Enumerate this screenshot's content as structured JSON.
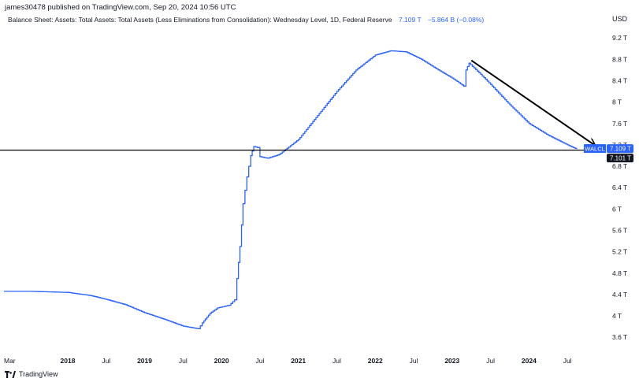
{
  "header": {
    "published_line": "james30478 published on TradingView.com, Sep 20, 2024 10:56 UTC"
  },
  "legend": {
    "title": "Balance Sheet: Assets: Total Assets: Total Assets (Less Eliminations from Consolidation): Wednesday Level, 1D, Federal Reserve",
    "value": "7.109 T",
    "change": "−5.864 B (−0.08%)"
  },
  "axis": {
    "currency": "USD"
  },
  "footer": {
    "brand": "TradingView"
  },
  "colors": {
    "series": "#2962ff",
    "line_black": "#000000",
    "tag_blue": "#2962ff",
    "tag_black": "#131722"
  },
  "chart_data": {
    "type": "line",
    "title": "Balance Sheet: Assets: Total Assets: Total Assets (Less Eliminations from Consolidation): Wednesday Level, 1D, Federal Reserve",
    "symbol": "WALCL",
    "xlabel": "",
    "ylabel": "USD",
    "xlim": [
      2017.17,
      2024.97
    ],
    "ylim": [
      3.25,
      9.35
    ],
    "y_ticks": [
      3.6,
      4,
      4.4,
      4.8,
      5.2,
      5.6,
      6,
      6.4,
      6.8,
      7.2,
      7.6,
      8,
      8.4,
      8.8,
      9.2
    ],
    "y_tick_labels": [
      "3.6 T",
      "4 T",
      "4.4 T",
      "4.8 T",
      "5.2 T",
      "5.6 T",
      "6 T",
      "6.4 T",
      "6.8 T",
      "7.2 T",
      "7.6 T",
      "8 T",
      "8.4 T",
      "8.8 T",
      "9.2 T"
    ],
    "x_ticks": [
      {
        "x": 2017.2,
        "label": "Mar"
      },
      {
        "x": 2018.0,
        "label": "2018"
      },
      {
        "x": 2018.5,
        "label": "Jul"
      },
      {
        "x": 2019.0,
        "label": "2019"
      },
      {
        "x": 2019.5,
        "label": "Jul"
      },
      {
        "x": 2020.0,
        "label": "2020"
      },
      {
        "x": 2020.5,
        "label": "Jul"
      },
      {
        "x": 2021.0,
        "label": "2021"
      },
      {
        "x": 2021.5,
        "label": "Jul"
      },
      {
        "x": 2022.0,
        "label": "2022"
      },
      {
        "x": 2022.5,
        "label": "Jul"
      },
      {
        "x": 2023.0,
        "label": "2023"
      },
      {
        "x": 2023.5,
        "label": "Jul"
      },
      {
        "x": 2024.0,
        "label": "2024"
      },
      {
        "x": 2024.5,
        "label": "Jul"
      }
    ],
    "series": [
      {
        "name": "WALCL",
        "points": [
          [
            2017.17,
            4.46
          ],
          [
            2017.5,
            4.46
          ],
          [
            2018.0,
            4.44
          ],
          [
            2018.3,
            4.38
          ],
          [
            2018.5,
            4.31
          ],
          [
            2018.75,
            4.21
          ],
          [
            2019.0,
            4.06
          ],
          [
            2019.25,
            3.94
          ],
          [
            2019.5,
            3.81
          ],
          [
            2019.7,
            3.76
          ],
          [
            2019.75,
            3.87
          ],
          [
            2019.85,
            4.05
          ],
          [
            2019.95,
            4.15
          ],
          [
            2020.1,
            4.2
          ],
          [
            2020.17,
            4.3
          ],
          [
            2020.2,
            4.7
          ],
          [
            2020.24,
            5.3
          ],
          [
            2020.28,
            6.1
          ],
          [
            2020.33,
            6.6
          ],
          [
            2020.38,
            7.0
          ],
          [
            2020.42,
            7.17
          ],
          [
            2020.47,
            7.15
          ],
          [
            2020.5,
            6.98
          ],
          [
            2020.6,
            6.95
          ],
          [
            2020.75,
            7.02
          ],
          [
            2021.0,
            7.3
          ],
          [
            2021.25,
            7.75
          ],
          [
            2021.5,
            8.2
          ],
          [
            2021.75,
            8.6
          ],
          [
            2022.0,
            8.88
          ],
          [
            2022.2,
            8.96
          ],
          [
            2022.4,
            8.94
          ],
          [
            2022.6,
            8.8
          ],
          [
            2022.8,
            8.62
          ],
          [
            2023.0,
            8.45
          ],
          [
            2023.15,
            8.3
          ],
          [
            2023.18,
            8.6
          ],
          [
            2023.22,
            8.73
          ],
          [
            2023.35,
            8.55
          ],
          [
            2023.5,
            8.33
          ],
          [
            2023.75,
            7.95
          ],
          [
            2024.0,
            7.6
          ],
          [
            2024.25,
            7.38
          ],
          [
            2024.5,
            7.2
          ],
          [
            2024.62,
            7.12
          ]
        ]
      }
    ],
    "horizontal_line": {
      "y": 7.101,
      "label": "7.101 T"
    },
    "last_value": {
      "y": 7.109,
      "label": "7.109 T",
      "tag": "WALCL"
    },
    "annotations": [
      {
        "type": "arrow",
        "from": [
          2023.25,
          8.78
        ],
        "to": [
          2024.85,
          7.2
        ]
      }
    ]
  }
}
